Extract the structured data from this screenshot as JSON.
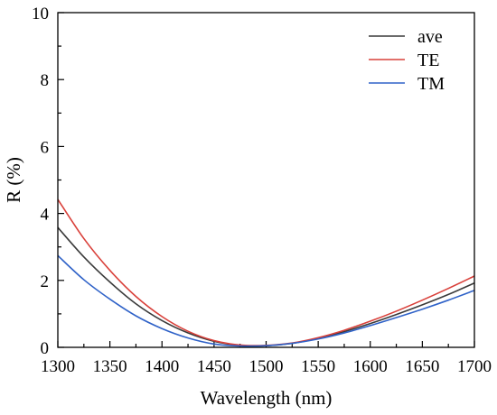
{
  "chart_data": {
    "type": "line",
    "title": "",
    "xlabel": "Wavelength (nm)",
    "ylabel": "R (%)",
    "xlim": [
      1300,
      1700
    ],
    "ylim": [
      0,
      10
    ],
    "x_ticks": [
      1300,
      1350,
      1400,
      1450,
      1500,
      1550,
      1600,
      1650,
      1700
    ],
    "y_ticks": [
      0,
      2,
      4,
      6,
      8,
      10
    ],
    "grid": false,
    "legend_position": "top-right",
    "x": [
      1300,
      1325,
      1350,
      1375,
      1400,
      1425,
      1450,
      1475,
      1500,
      1525,
      1550,
      1575,
      1600,
      1625,
      1650,
      1675,
      1700
    ],
    "series": [
      {
        "name": "ave",
        "color": "#3a3a3a",
        "values": [
          3.58,
          2.7,
          1.95,
          1.3,
          0.8,
          0.43,
          0.18,
          0.06,
          0.05,
          0.12,
          0.27,
          0.47,
          0.71,
          0.98,
          1.27,
          1.58,
          1.92
        ]
      },
      {
        "name": "TE",
        "color": "#d9403a",
        "values": [
          4.42,
          3.25,
          2.3,
          1.52,
          0.92,
          0.48,
          0.2,
          0.07,
          0.06,
          0.13,
          0.29,
          0.51,
          0.78,
          1.08,
          1.41,
          1.76,
          2.13
        ]
      },
      {
        "name": "TM",
        "color": "#2f62c8",
        "values": [
          2.74,
          2.02,
          1.44,
          0.94,
          0.56,
          0.28,
          0.1,
          0.04,
          0.05,
          0.12,
          0.25,
          0.43,
          0.65,
          0.89,
          1.14,
          1.41,
          1.7
        ]
      }
    ]
  }
}
